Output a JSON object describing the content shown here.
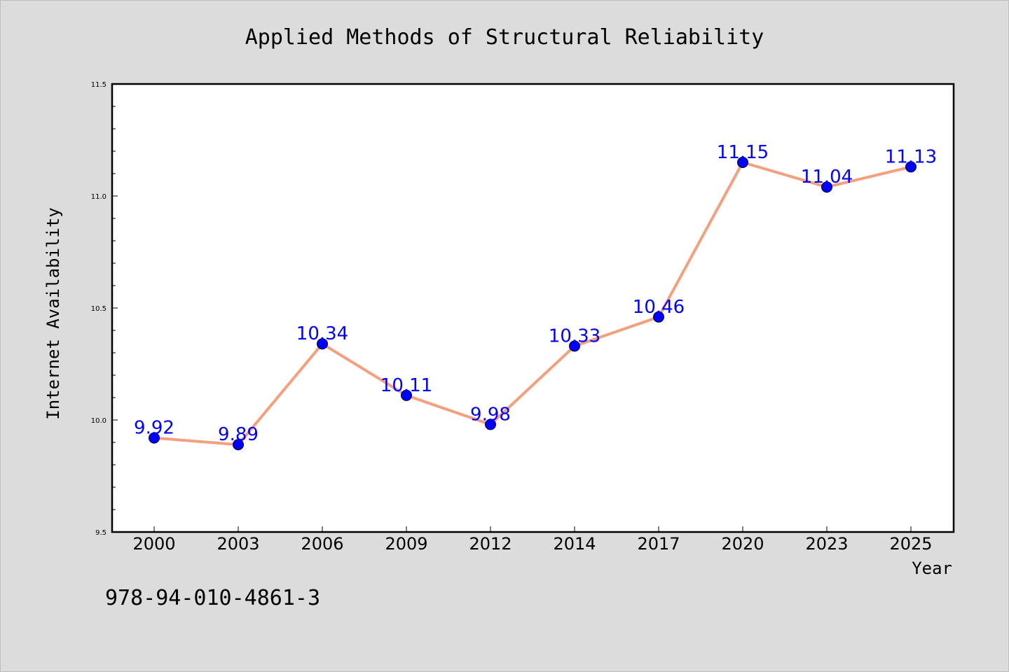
{
  "chart_data": {
    "type": "line",
    "title": "Applied Methods of Structural Reliability",
    "xlabel": "Year",
    "ylabel": "Internet Availability",
    "categories": [
      "2000",
      "2003",
      "2006",
      "2009",
      "2012",
      "2014",
      "2017",
      "2020",
      "2023",
      "2025"
    ],
    "series": [
      {
        "values": [
          9.92,
          9.89,
          10.34,
          10.11,
          9.98,
          10.33,
          10.46,
          11.15,
          11.04,
          11.13
        ],
        "data_labels": [
          "9.92",
          "9.89",
          "10.34",
          "10.11",
          "9.98",
          "10.33",
          "10.46",
          "11.15",
          "11.04",
          "11.13"
        ]
      }
    ],
    "ylim": [
      9.5,
      11.5
    ],
    "yticks": [
      "9.5",
      "10.0",
      "10.5",
      "11.0",
      "11.5"
    ],
    "grid": false,
    "legend": "none",
    "line_color": "#f4a07e",
    "marker_color": "#0000ff",
    "label_color": "#0000ff"
  },
  "footnote": "978-94-010-4861-3"
}
